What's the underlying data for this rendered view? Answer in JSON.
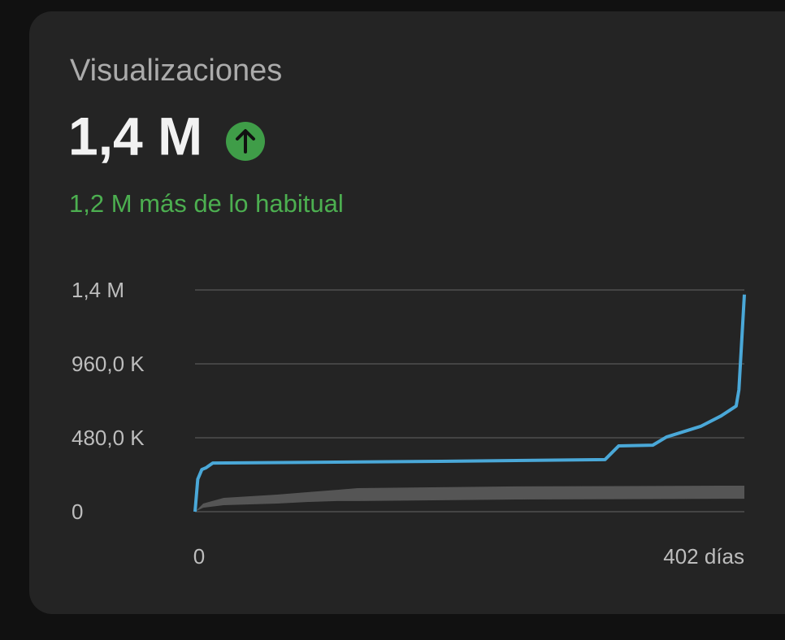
{
  "card": {
    "title": "Visualizaciones",
    "value": "1,4 M",
    "delta_text": "1,2 M más de lo habitual"
  },
  "chart_data": {
    "type": "line",
    "x": [
      0,
      2,
      5,
      8,
      13,
      180,
      300,
      310,
      335,
      345,
      370,
      385,
      396,
      398,
      400,
      402
    ],
    "series": [
      {
        "color": "#4aa8d8",
        "values": [
          0,
          211000,
          274000,
          285000,
          316000,
          327000,
          338000,
          427000,
          432000,
          485000,
          554000,
          622000,
          686000,
          791000,
          1100000,
          1410000
        ]
      }
    ],
    "band": {
      "color": "#555555",
      "x": [
        0,
        6,
        21,
        60,
        83,
        104,
        119,
        235,
        402
      ],
      "low": [
        0,
        26000,
        42000,
        53000,
        63000,
        69000,
        69000,
        79000,
        84000
      ],
      "high": [
        0,
        53000,
        90000,
        111000,
        127000,
        142000,
        153000,
        164000,
        169000
      ]
    },
    "xlim": [
      0,
      402
    ],
    "xticks": [
      0,
      {
        "value": 402,
        "label": "402 días"
      }
    ],
    "ylim": [
      0,
      1440000
    ],
    "yticks": [
      0,
      {
        "value": 480000,
        "label": "480,0 K"
      },
      {
        "value": 960000,
        "label": "960,0 K"
      },
      {
        "value": 1440000,
        "label": "1,4 M"
      }
    ],
    "grid": true
  }
}
